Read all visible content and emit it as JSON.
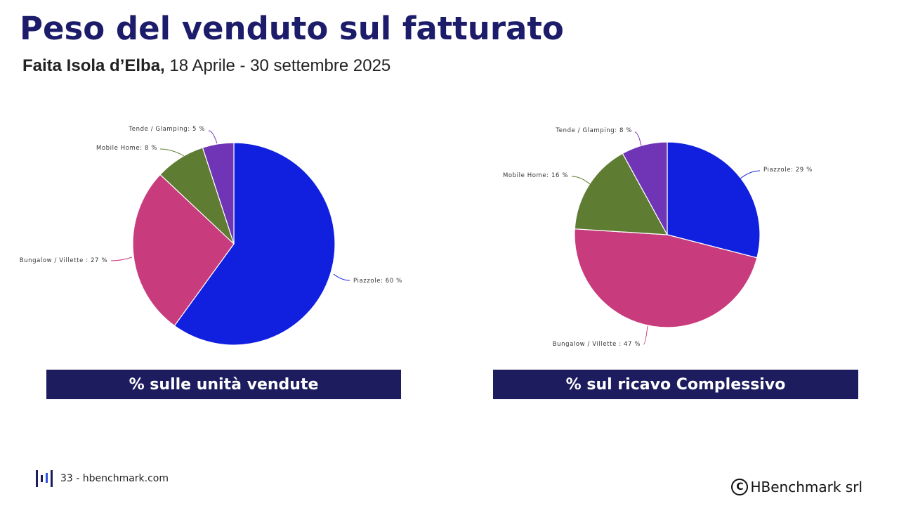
{
  "header": {
    "title": "Peso del venduto sul fatturato",
    "subtitle_bold": "Faita Isola d’Elba,",
    "subtitle_rest": " 18 Aprile - 30 settembre 2025"
  },
  "captions": {
    "left": "% sulle unità vendute",
    "right": "% sul ricavo Complessivo"
  },
  "footer": {
    "page": "33 - hbenchmark.com",
    "copyright_symbol": "C",
    "company": "HBenchmark srl",
    "logo_icon": "hbenchmark-logo-icon"
  },
  "colors": {
    "Piazzole": "#1120df",
    "Bungalow / Villette": "#c83b7c",
    "Mobile Home": "#5e7d33",
    "Tende / Glamping": "#6f35b6",
    "navy": "#1c1c5e"
  },
  "chart_data": [
    {
      "type": "pie",
      "title": "",
      "labels": [
        "Piazzole",
        "Bungalow / Villette",
        "Mobile Home",
        "Tende / Glamping"
      ],
      "values": [
        60,
        27,
        8,
        5
      ],
      "label_texts": [
        "Piazzole: 60 %",
        "Bungalow / Villette : 27 %",
        "Mobile Home: 8 %",
        "Tende / Glamping: 5 %"
      ]
    },
    {
      "type": "pie",
      "title": "",
      "labels": [
        "Piazzole",
        "Bungalow / Villette",
        "Mobile Home",
        "Tende / Glamping"
      ],
      "values": [
        29,
        47,
        16,
        8
      ],
      "label_texts": [
        "Piazzole: 29 %",
        "Bungalow / Villette : 47 %",
        "Mobile Home: 16 %",
        "Tende / Glamping: 8 %"
      ]
    }
  ]
}
